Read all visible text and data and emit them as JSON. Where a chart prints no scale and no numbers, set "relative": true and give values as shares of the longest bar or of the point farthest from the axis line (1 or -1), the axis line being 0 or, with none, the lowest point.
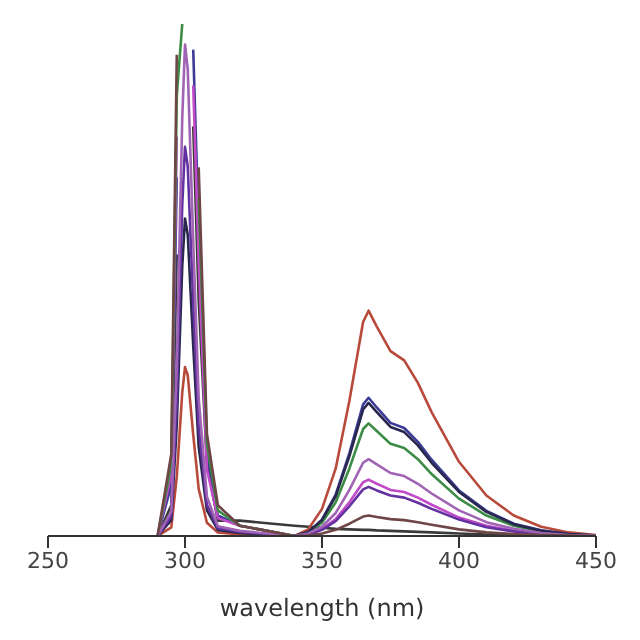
{
  "chart_data": {
    "type": "line",
    "xlabel": "wavelength (nm)",
    "relative": true,
    "xlim": [
      250,
      450
    ],
    "xticks": [
      250,
      300,
      350,
      400,
      450
    ],
    "marker": "none",
    "x": [
      290,
      295,
      297,
      299,
      300,
      301,
      303,
      305,
      308,
      312,
      320,
      340,
      345,
      350,
      355,
      360,
      365,
      367,
      370,
      375,
      380,
      385,
      390,
      400,
      410,
      420,
      430,
      440,
      450
    ],
    "series": [
      {
        "color": "#3a3a3a",
        "values": [
          0,
          0.06,
          0.55,
          null,
          null,
          null,
          0.8,
          0.46,
          0.14,
          0.03,
          0.03,
          0.02,
          0.018,
          0.016,
          0.014,
          0.013,
          0.012,
          0.012,
          0.011,
          0.01,
          0.009,
          0.008,
          0.007,
          0.005,
          0.003,
          0.002,
          0.001,
          0,
          0
        ]
      },
      {
        "color": "#b84a3c",
        "values": [
          0,
          0.017,
          0.116,
          0.28,
          0.33,
          0.314,
          0.198,
          0.092,
          0.026,
          0.007,
          0.003,
          0,
          0.013,
          0.053,
          0.132,
          0.264,
          0.418,
          0.44,
          0.409,
          0.361,
          0.343,
          0.299,
          0.242,
          0.145,
          0.079,
          0.04,
          0.018,
          0.007,
          0.002
        ]
      },
      {
        "color": "#3c3c96",
        "values": [
          0,
          0.1,
          0.7,
          null,
          null,
          null,
          0.95,
          0.6,
          0.16,
          0.04,
          0.02,
          0,
          0.008,
          0.032,
          0.081,
          0.162,
          0.257,
          0.27,
          0.251,
          0.221,
          0.211,
          0.184,
          0.149,
          0.089,
          0.049,
          0.024,
          0.011,
          0.004,
          0.001
        ]
      },
      {
        "color": "#c04ac8",
        "values": [
          0,
          0.12,
          0.78,
          null,
          null,
          null,
          0.88,
          0.54,
          0.13,
          0.035,
          0.02,
          0,
          0.003,
          0.013,
          0.033,
          0.066,
          0.105,
          0.11,
          0.102,
          0.09,
          0.086,
          0.075,
          0.061,
          0.036,
          0.02,
          0.01,
          0.004,
          0.002,
          0.001
        ]
      },
      {
        "color": "#3c8c46",
        "values": [
          0,
          0.14,
          0.86,
          1,
          null,
          null,
          null,
          0.66,
          0.18,
          0.05,
          0.02,
          0,
          0.007,
          0.026,
          0.066,
          0.132,
          0.209,
          0.22,
          0.205,
          0.18,
          0.172,
          0.15,
          0.121,
          0.073,
          0.04,
          0.02,
          0.009,
          0.003,
          0.001
        ]
      },
      {
        "color": "#28284e",
        "values": [
          0,
          0.031,
          0.217,
          0.527,
          0.62,
          0.589,
          0.372,
          0.174,
          0.05,
          0.012,
          0.006,
          0,
          0.008,
          0.031,
          0.078,
          0.156,
          0.247,
          0.26,
          0.242,
          0.213,
          0.203,
          0.177,
          0.143,
          0.086,
          0.047,
          0.023,
          0.01,
          0.004,
          0.001
        ]
      },
      {
        "color": "#6432a0",
        "values": [
          0,
          0.038,
          0.266,
          0.646,
          0.76,
          0.722,
          0.456,
          0.213,
          0.061,
          0.015,
          0.008,
          0,
          0.003,
          0.012,
          0.029,
          0.058,
          0.091,
          0.096,
          0.089,
          0.079,
          0.075,
          0.065,
          0.053,
          0.032,
          0.017,
          0.009,
          0.004,
          0.001,
          0
        ]
      },
      {
        "color": "#a064b4",
        "values": [
          0,
          0.048,
          0.336,
          0.816,
          0.96,
          0.912,
          0.576,
          0.269,
          0.077,
          0.019,
          0.01,
          0,
          0.005,
          0.018,
          0.045,
          0.09,
          0.143,
          0.15,
          0.14,
          0.123,
          0.117,
          0.102,
          0.083,
          0.05,
          0.027,
          0.014,
          0.006,
          0.002,
          0.001
        ]
      },
      {
        "color": "#6e4646",
        "values": [
          0,
          0.16,
          0.94,
          null,
          null,
          null,
          null,
          0.72,
          0.2,
          0.06,
          0.02,
          0,
          0.001,
          0.005,
          0.012,
          0.024,
          0.038,
          0.04,
          0.037,
          0.033,
          0.031,
          0.027,
          0.022,
          0.013,
          0.007,
          0.004,
          0.002,
          0.001,
          0
        ]
      }
    ]
  }
}
